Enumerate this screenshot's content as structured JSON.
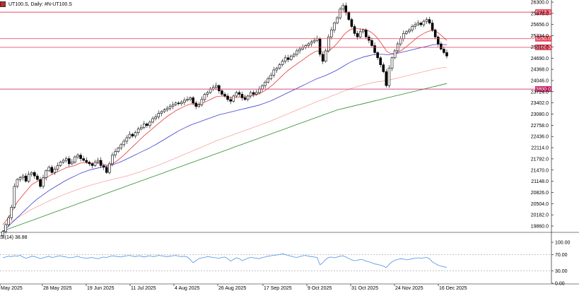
{
  "header": {
    "symbol_title": "UT100.S, Daily:  #N-UT100.S",
    "rsi_title": "SI(14) 38.88"
  },
  "colors": {
    "bull_candle": "#ffffff",
    "bear_candle": "#000000",
    "ma_fast": "#e53935",
    "ma_mid": "#3f3fcf",
    "ma_slow": "#f4a6a0",
    "ma_long": "#2e8b2e",
    "rsi_line": "#4a90e2",
    "hline": "#e53950",
    "hline_dark": "#c2185b"
  },
  "chart_data": {
    "type": "candlestick",
    "price_axis_ticks": [
      "26300.0",
      "25978.0",
      "25656.0",
      "25334.0",
      "25012.0",
      "24690.0",
      "24368.0",
      "24046.0",
      "23724.0",
      "23402.0",
      "23080.0",
      "22758.0",
      "22436.0",
      "22114.0",
      "21792.0",
      "21470.0",
      "21148.0",
      "20826.0",
      "20504.0",
      "20182.0",
      "19860.0"
    ],
    "price_range": [
      19698,
      26362
    ],
    "x_labels": [
      "May 2025",
      "28 May 2025",
      "19 Jun 2025",
      "11 Jul 2025",
      "4 Aug 2025",
      "26 Aug 2025",
      "17 Sep 2025",
      "9 Oct 2025",
      "31 Oct 2025",
      "24 Nov 2025",
      "16 Dec 2025"
    ],
    "horizontal_levels": [
      {
        "label": "26013.3",
        "value": 26013.3,
        "line": "hline",
        "box": "hline"
      },
      {
        "label": "25250.0",
        "value": 25250.0,
        "line": "hline",
        "box": "hline"
      },
      {
        "label": "25000.0",
        "value": 25000.0,
        "line": "hline",
        "box": "hline"
      },
      {
        "label": "23800.0",
        "value": 23800.0,
        "line": "hline_dark",
        "box": "hline_dark"
      }
    ],
    "closes": [
      19700,
      19900,
      20100,
      20400,
      21000,
      21200,
      21250,
      21300,
      21150,
      21350,
      21400,
      21300,
      21200,
      21000,
      21250,
      21450,
      21550,
      21400,
      21500,
      21600,
      21700,
      21750,
      21800,
      21650,
      21700,
      21850,
      21900,
      21800,
      21750,
      21700,
      21650,
      21600,
      21700,
      21750,
      21600,
      21550,
      21400,
      21650,
      21900,
      22000,
      22100,
      22200,
      22300,
      22400,
      22500,
      22450,
      22550,
      22650,
      22700,
      22800,
      22750,
      22850,
      22950,
      23000,
      23100,
      23150,
      23200,
      23250,
      23300,
      23350,
      23400,
      23380,
      23420,
      23480,
      23500,
      23550,
      23400,
      23300,
      23350,
      23500,
      23650,
      23700,
      23800,
      23850,
      23900,
      23750,
      23650,
      23600,
      23500,
      23450,
      23600,
      23700,
      23650,
      23550,
      23500,
      23600,
      23700,
      23650,
      23700,
      23800,
      23900,
      24000,
      24100,
      24200,
      24350,
      24400,
      24500,
      24600,
      24700,
      24650,
      24750,
      24800,
      24900,
      24950,
      25000,
      25050,
      25100,
      25150,
      25200,
      25250,
      24800,
      24600,
      24900,
      25300,
      25500,
      25700,
      25850,
      26100,
      26200,
      26000,
      25800,
      25600,
      25400,
      25300,
      25450,
      25500,
      25300,
      25200,
      25050,
      24850,
      24700,
      24500,
      24300,
      23900,
      24400,
      24700,
      24900,
      25100,
      25250,
      25400,
      25450,
      25500,
      25600,
      25650,
      25700,
      25650,
      25750,
      25800,
      25700,
      25500,
      25300,
      25100,
      24950,
      24850,
      24750
    ],
    "sma_fast": [
      19900,
      20000,
      20100,
      20250,
      20400,
      20550,
      20650,
      20750,
      20850,
      20950,
      21050,
      21100,
      21150,
      21180,
      21200,
      21250,
      21300,
      21340,
      21380,
      21420,
      21460,
      21500,
      21540,
      21560,
      21580,
      21600,
      21640,
      21670,
      21680,
      21680,
      21670,
      21660,
      21660,
      21670,
      21660,
      21640,
      21610,
      21620,
      21650,
      21700,
      21760,
      21830,
      21900,
      21980,
      22060,
      22140,
      22220,
      22300,
      22380,
      22460,
      22530,
      22600,
      22670,
      22740,
      22810,
      22880,
      22950,
      23010,
      23070,
      23120,
      23180,
      23220,
      23260,
      23300,
      23340,
      23370,
      23380,
      23370,
      23360,
      23380,
      23420,
      23460,
      23500,
      23540,
      23580,
      23590,
      23600,
      23590,
      23570,
      23550,
      23550,
      23560,
      23570,
      23570,
      23580,
      23590,
      23600,
      23620,
      23640,
      23670,
      23710,
      23760,
      23820,
      23880,
      23950,
      24030,
      24110,
      24190,
      24270,
      24340,
      24400,
      24460,
      24520,
      24580,
      24640,
      24700,
      24760,
      24810,
      24860,
      24900,
      24880,
      24860,
      24870,
      24900,
      24960,
      25030,
      25120,
      25220,
      25330,
      25420,
      25480,
      25520,
      25540,
      25540,
      25530,
      25520,
      25500,
      25470,
      25420,
      25350,
      25260,
      25150,
      25030,
      24900,
      24840,
      24820,
      24830,
      24860,
      24900,
      24960,
      25020,
      25090,
      25160,
      25230,
      25300,
      25350,
      25400,
      25440,
      25470,
      25480,
      25470,
      25420,
      25350,
      25280,
      25200
    ],
    "sma_mid": [
      19700,
      19780,
      19860,
      19940,
      20020,
      20100,
      20180,
      20260,
      20340,
      20420,
      20500,
      20570,
      20640,
      20700,
      20760,
      20820,
      20880,
      20930,
      20980,
      21030,
      21080,
      21130,
      21180,
      21220,
      21260,
      21300,
      21340,
      21380,
      21410,
      21440,
      21470,
      21490,
      21510,
      21530,
      21550,
      21570,
      21580,
      21600,
      21620,
      21650,
      21680,
      21710,
      21750,
      21790,
      21830,
      21870,
      21910,
      21950,
      21990,
      22030,
      22070,
      22110,
      22160,
      22200,
      22250,
      22300,
      22350,
      22400,
      22450,
      22500,
      22550,
      22600,
      22640,
      22680,
      22720,
      22760,
      22790,
      22820,
      22850,
      22880,
      22910,
      22940,
      22970,
      23000,
      23030,
      23060,
      23080,
      23100,
      23120,
      23140,
      23160,
      23180,
      23200,
      23220,
      23240,
      23260,
      23280,
      23300,
      23320,
      23340,
      23370,
      23400,
      23430,
      23460,
      23500,
      23540,
      23580,
      23620,
      23660,
      23700,
      23740,
      23780,
      23820,
      23860,
      23900,
      23940,
      23980,
      24020,
      24060,
      24100,
      24130,
      24160,
      24190,
      24230,
      24270,
      24310,
      24350,
      24400,
      24450,
      24500,
      24550,
      24590,
      24630,
      24660,
      24690,
      24720,
      24740,
      24760,
      24780,
      24790,
      24800,
      24800,
      24800,
      24790,
      24790,
      24800,
      24810,
      24830,
      24850,
      24870,
      24890,
      24910,
      24930,
      24950,
      24970,
      24990,
      25010,
      25030,
      25050,
      25070,
      25080,
      25090,
      25090,
      25080,
      25070
    ],
    "sma_slow": [
      19800,
      19860,
      19920,
      19980,
      20040,
      20090,
      20140,
      20190,
      20240,
      20290,
      20340,
      20380,
      20420,
      20460,
      20500,
      20540,
      20580,
      20620,
      20650,
      20690,
      20720,
      20760,
      20790,
      20820,
      20850,
      20880,
      20910,
      20940,
      20970,
      21000,
      21020,
      21050,
      21070,
      21090,
      21120,
      21140,
      21160,
      21180,
      21200,
      21220,
      21240,
      21260,
      21280,
      21300,
      21330,
      21350,
      21380,
      21400,
      21430,
      21460,
      21490,
      21520,
      21550,
      21580,
      21610,
      21640,
      21680,
      21710,
      21750,
      21780,
      21820,
      21850,
      21890,
      21920,
      21960,
      21990,
      22030,
      22060,
      22100,
      22130,
      22170,
      22200,
      22240,
      22270,
      22310,
      22340,
      22370,
      22400,
      22430,
      22460,
      22490,
      22520,
      22550,
      22580,
      22610,
      22640,
      22670,
      22700,
      22730,
      22760,
      22790,
      22820,
      22850,
      22880,
      22920,
      22950,
      22990,
      23020,
      23060,
      23090,
      23130,
      23160,
      23200,
      23230,
      23270,
      23300,
      23340,
      23370,
      23410,
      23440,
      23470,
      23500,
      23530,
      23560,
      23600,
      23630,
      23660,
      23700,
      23730,
      23760,
      23790,
      23820,
      23850,
      23870,
      23900,
      23920,
      23940,
      23960,
      23980,
      24000,
      24010,
      24020,
      24030,
      24040,
      24060,
      24080,
      24100,
      24120,
      24140,
      24160,
      24180,
      24200,
      24220,
      24240,
      24260,
      24280,
      24300,
      24320,
      24340,
      24360,
      24380,
      24400,
      24410,
      24420,
      24430
    ],
    "sma_long": [
      19720,
      19750,
      19780,
      19810,
      19840,
      19870,
      19900,
      19930,
      19960,
      19990,
      20020,
      20050,
      20080,
      20110,
      20140,
      20170,
      20200,
      20230,
      20260,
      20290,
      20320,
      20350,
      20380,
      20410,
      20440,
      20470,
      20500,
      20530,
      20560,
      20590,
      20620,
      20650,
      20680,
      20710,
      20740,
      20770,
      20800,
      20830,
      20860,
      20890,
      20920,
      20950,
      20980,
      21010,
      21040,
      21070,
      21100,
      21130,
      21160,
      21190,
      21220,
      21250,
      21280,
      21310,
      21340,
      21370,
      21400,
      21430,
      21460,
      21490,
      21520,
      21550,
      21580,
      21610,
      21640,
      21670,
      21700,
      21730,
      21760,
      21790,
      21820,
      21850,
      21880,
      21910,
      21940,
      21970,
      22000,
      22030,
      22060,
      22090,
      22120,
      22150,
      22180,
      22210,
      22240,
      22270,
      22300,
      22330,
      22360,
      22390,
      22420,
      22450,
      22480,
      22510,
      22540,
      22570,
      22600,
      22630,
      22660,
      22690,
      22720,
      22750,
      22780,
      22810,
      22840,
      22870,
      22900,
      22930,
      22960,
      22990,
      23020,
      23050,
      23080,
      23110,
      23140,
      23170,
      23200,
      23220,
      23240,
      23260,
      23280,
      23300,
      23320,
      23340,
      23360,
      23380,
      23400,
      23420,
      23440,
      23460,
      23480,
      23500,
      23520,
      23540,
      23560,
      23580,
      23600,
      23620,
      23640,
      23660,
      23680,
      23700,
      23720,
      23740,
      23760,
      23780,
      23800,
      23820,
      23840,
      23860,
      23880,
      23900,
      23920,
      23940,
      23960
    ],
    "rsi_axis_ticks": [
      "100.00",
      "70.00",
      "30.00",
      "0.00"
    ],
    "rsi_range": [
      0,
      100
    ],
    "rsi_levels": [
      70,
      30
    ],
    "rsi_values": [
      62,
      64,
      66,
      65,
      67,
      66,
      68,
      64,
      61,
      63,
      66,
      65,
      63,
      60,
      62,
      64,
      66,
      63,
      64,
      66,
      67,
      65,
      64,
      62,
      63,
      64,
      66,
      63,
      62,
      61,
      62,
      63,
      61,
      60,
      62,
      64,
      63,
      65,
      67,
      66,
      65,
      64,
      66,
      67,
      68,
      66,
      65,
      67,
      66,
      64,
      66,
      67,
      65,
      66,
      68,
      67,
      66,
      65,
      66,
      67,
      68,
      66,
      65,
      66,
      64,
      58,
      50,
      55,
      60,
      62,
      63,
      65,
      64,
      63,
      62,
      61,
      63,
      64,
      60,
      54,
      58,
      62,
      60,
      55,
      58,
      61,
      63,
      62,
      61,
      60,
      63,
      64,
      66,
      67,
      68,
      69,
      70,
      72,
      70,
      68,
      66,
      64,
      63,
      65,
      67,
      68,
      66,
      65,
      64,
      63,
      45,
      50,
      58,
      63,
      64,
      62,
      64,
      66,
      67,
      64,
      60,
      57,
      55,
      56,
      58,
      57,
      54,
      52,
      50,
      47,
      46,
      44,
      42,
      38,
      46,
      52,
      56,
      58,
      60,
      59,
      57,
      58,
      60,
      61,
      62,
      61,
      62,
      63,
      60,
      52,
      48,
      44,
      42,
      40,
      39
    ],
    "rsi_current": 38.88
  }
}
